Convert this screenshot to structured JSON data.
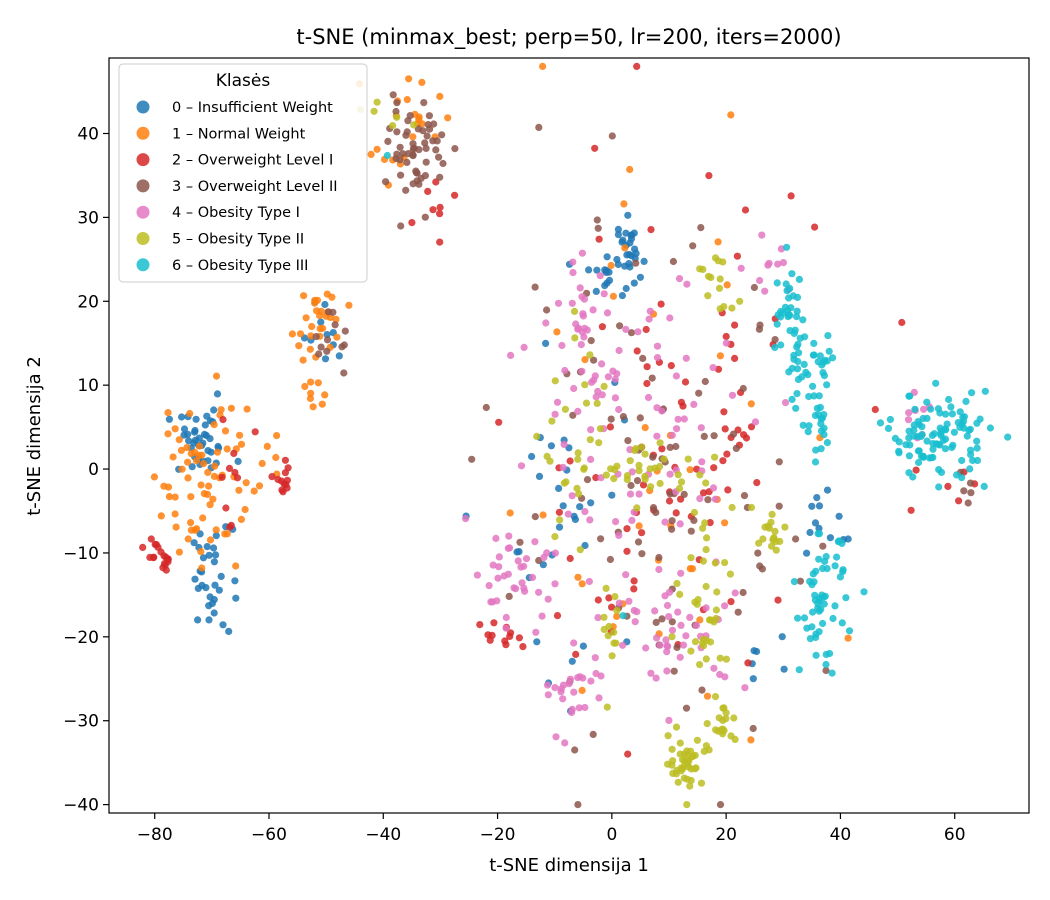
{
  "chart_data": {
    "type": "scatter",
    "title": "t-SNE (minmax_best; perp=50, lr=200, iters=2000)",
    "xlabel": "t-SNE dimensija 1",
    "ylabel": "t-SNE dimensija 2",
    "xlim": [
      -88,
      73
    ],
    "ylim": [
      -41,
      49
    ],
    "xticks": [
      -80,
      -60,
      -40,
      -20,
      0,
      20,
      40,
      60
    ],
    "yticks": [
      -40,
      -30,
      -20,
      -10,
      0,
      10,
      20,
      30,
      40
    ],
    "xtick_labels": [
      "−80",
      "−60",
      "−40",
      "−20",
      "0",
      "20",
      "40",
      "60"
    ],
    "ytick_labels": [
      "−40",
      "−30",
      "−20",
      "−10",
      "0",
      "10",
      "20",
      "30",
      "40"
    ],
    "grid": false,
    "legend": {
      "title": "Klasės",
      "placement": "top-left"
    },
    "series": [
      {
        "name": "0 – Insufficient Weight",
        "color": "#1f77b4",
        "clusters": [
          {
            "cx": -72,
            "cy": 3,
            "sx": 3,
            "sy": 2,
            "n": 40
          },
          {
            "cx": -70,
            "cy": -13,
            "sx": 1.8,
            "sy": 3,
            "n": 32
          },
          {
            "cx": 3,
            "cy": 26,
            "sx": 1,
            "sy": 2,
            "n": 22
          },
          {
            "cx": -1,
            "cy": 23,
            "sx": 2.5,
            "sy": 1.5,
            "n": 18
          },
          {
            "cx": -50,
            "cy": 16,
            "sx": 2,
            "sy": 2,
            "n": 10
          },
          {
            "cx": -6,
            "cy": -4,
            "sx": 6,
            "sy": 12,
            "n": 32
          },
          {
            "cx": 37,
            "cy": -6,
            "sx": 3,
            "sy": 2,
            "n": 12
          },
          {
            "cx": 27,
            "cy": -24,
            "sx": 2,
            "sy": 2,
            "n": 6
          }
        ]
      },
      {
        "name": "1 – Normal Weight",
        "color": "#ff7f0e",
        "clusters": [
          {
            "cx": -72,
            "cy": 0,
            "sx": 4,
            "sy": 6,
            "n": 70
          },
          {
            "cx": -51,
            "cy": 17,
            "sx": 2.5,
            "sy": 2.5,
            "n": 28
          },
          {
            "cx": -36,
            "cy": 41,
            "sx": 3,
            "sy": 3,
            "n": 22
          },
          {
            "cx": -52,
            "cy": 9,
            "sx": 1.2,
            "sy": 1.2,
            "n": 8
          },
          {
            "cx": -60,
            "cy": 1,
            "sx": 1.2,
            "sy": 1.5,
            "n": 6
          },
          {
            "cx": 5,
            "cy": 0,
            "sx": 14,
            "sy": 18,
            "n": 40
          }
        ]
      },
      {
        "name": "2 – Overweight Level I",
        "color": "#d62728",
        "clusters": [
          {
            "cx": -79,
            "cy": -10.5,
            "sx": 1.3,
            "sy": 1.3,
            "n": 18
          },
          {
            "cx": -57,
            "cy": -1,
            "sx": 1,
            "sy": 1.5,
            "n": 12
          },
          {
            "cx": -21,
            "cy": -20,
            "sx": 2,
            "sy": 1,
            "n": 12
          },
          {
            "cx": -30,
            "cy": 32,
            "sx": 2,
            "sy": 2,
            "n": 8
          },
          {
            "cx": -67,
            "cy": 1,
            "sx": 2,
            "sy": 3,
            "n": 10
          },
          {
            "cx": 10,
            "cy": 2,
            "sx": 14,
            "sy": 16,
            "n": 85
          },
          {
            "cx": 56,
            "cy": -2,
            "sx": 3,
            "sy": 1.2,
            "n": 6
          }
        ]
      },
      {
        "name": "3 – Overweight Level II",
        "color": "#8c564b",
        "clusters": [
          {
            "cx": -34,
            "cy": 38,
            "sx": 2.5,
            "sy": 3,
            "n": 55
          },
          {
            "cx": -49,
            "cy": 15,
            "sx": 1.5,
            "sy": 2,
            "n": 12
          },
          {
            "cx": 8,
            "cy": -5,
            "sx": 14,
            "sy": 16,
            "n": 100
          },
          {
            "cx": 62,
            "cy": -2.5,
            "sx": 1,
            "sy": 0.8,
            "n": 5
          }
        ]
      },
      {
        "name": "4 – Obesity Type I",
        "color": "#e377c2",
        "clusters": [
          {
            "cx": -17,
            "cy": -13,
            "sx": 3.5,
            "sy": 2.5,
            "n": 35
          },
          {
            "cx": -7,
            "cy": -27,
            "sx": 3,
            "sy": 3,
            "n": 25
          },
          {
            "cx": -5,
            "cy": 19,
            "sx": 2,
            "sy": 3,
            "n": 22
          },
          {
            "cx": 12,
            "cy": -20,
            "sx": 6,
            "sy": 3,
            "n": 40
          },
          {
            "cx": 5,
            "cy": 5,
            "sx": 12,
            "sy": 10,
            "n": 90
          },
          {
            "cx": 27,
            "cy": 25,
            "sx": 2,
            "sy": 2,
            "n": 10
          },
          {
            "cx": 53,
            "cy": 7,
            "sx": 2,
            "sy": 2,
            "n": 8
          }
        ]
      },
      {
        "name": "5 – Obesity Type II",
        "color": "#bcbd22",
        "clusters": [
          {
            "cx": 13,
            "cy": -35,
            "sx": 1.5,
            "sy": 1.5,
            "n": 40
          },
          {
            "cx": 19,
            "cy": -30,
            "sx": 1.5,
            "sy": 2,
            "n": 20
          },
          {
            "cx": 17,
            "cy": -15,
            "sx": 3,
            "sy": 6,
            "n": 40
          },
          {
            "cx": 6,
            "cy": 0,
            "sx": 4,
            "sy": 2,
            "n": 30
          },
          {
            "cx": 18,
            "cy": 22,
            "sx": 2,
            "sy": 2,
            "n": 14
          },
          {
            "cx": 28,
            "cy": -8,
            "sx": 1.5,
            "sy": 2,
            "n": 16
          },
          {
            "cx": -6,
            "cy": 3,
            "sx": 3,
            "sy": 6,
            "n": 25
          },
          {
            "cx": 0,
            "cy": -20,
            "sx": 1,
            "sy": 3,
            "n": 12
          },
          {
            "cx": -38,
            "cy": 42,
            "sx": 2,
            "sy": 1,
            "n": 6
          }
        ]
      },
      {
        "name": "6 – Obesity Type III",
        "color": "#17becf",
        "clusters": [
          {
            "cx": 57,
            "cy": 4,
            "sx": 4.5,
            "sy": 2.5,
            "n": 100
          },
          {
            "cx": 37,
            "cy": -16,
            "sx": 2,
            "sy": 4,
            "n": 55
          },
          {
            "cx": 31,
            "cy": 18,
            "sx": 1.5,
            "sy": 3,
            "n": 35
          },
          {
            "cx": 36,
            "cy": 6,
            "sx": 1.5,
            "sy": 3,
            "n": 30
          },
          {
            "cx": 35,
            "cy": 12,
            "sx": 3,
            "sy": 1.5,
            "n": 20
          },
          {
            "cx": -39,
            "cy": 37.5,
            "sx": 0.3,
            "sy": 0.3,
            "n": 1
          },
          {
            "cx": 1.5,
            "cy": -17.5,
            "sx": 0.3,
            "sy": 0.3,
            "n": 1
          }
        ]
      }
    ]
  }
}
